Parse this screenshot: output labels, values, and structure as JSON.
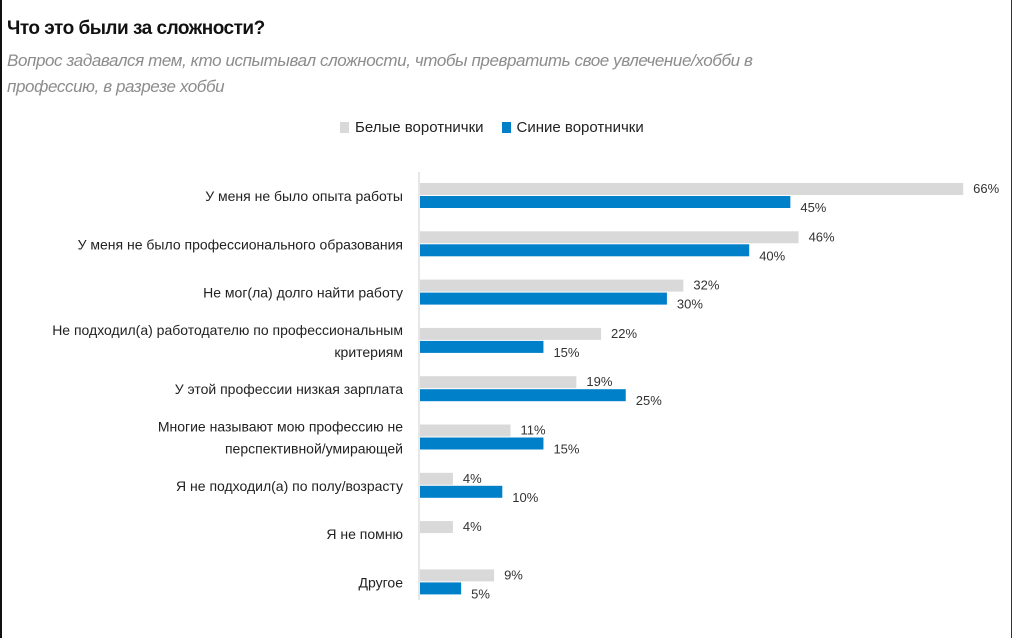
{
  "title": "Что это были за сложности?",
  "subtitle": "Вопрос задавался тем, кто испытывал сложности, чтобы превратить свое увлечение/хобби в профессию, в разрезе хобби",
  "chart_data": {
    "type": "bar",
    "orientation": "horizontal",
    "title": "Что это были за сложности?",
    "categories": [
      [
        "У меня не было опыта работы"
      ],
      [
        "У меня не было профессионального образования"
      ],
      [
        "Не мог(ла) долго найти работу"
      ],
      [
        "Не подходил(а) работодателю по профессиональным",
        "критериям"
      ],
      [
        "У этой профессии низкая зарплата"
      ],
      [
        "Многие называют мою профессию не",
        "перспективной/умирающей"
      ],
      [
        "Я не подходил(а) по полу/возрасту"
      ],
      [
        "Я не помню"
      ],
      [
        "Другое"
      ]
    ],
    "series": [
      {
        "name": "Белые воротнички",
        "color": "#d9d9d9",
        "values": [
          66,
          46,
          32,
          22,
          19,
          11,
          4,
          4,
          9
        ]
      },
      {
        "name": "Синие воротнички",
        "color": "#0080c9",
        "values": [
          45,
          40,
          30,
          15,
          25,
          15,
          10,
          null,
          5
        ]
      }
    ],
    "value_suffix": "%",
    "xlim": [
      0,
      66
    ],
    "legend": "top"
  }
}
